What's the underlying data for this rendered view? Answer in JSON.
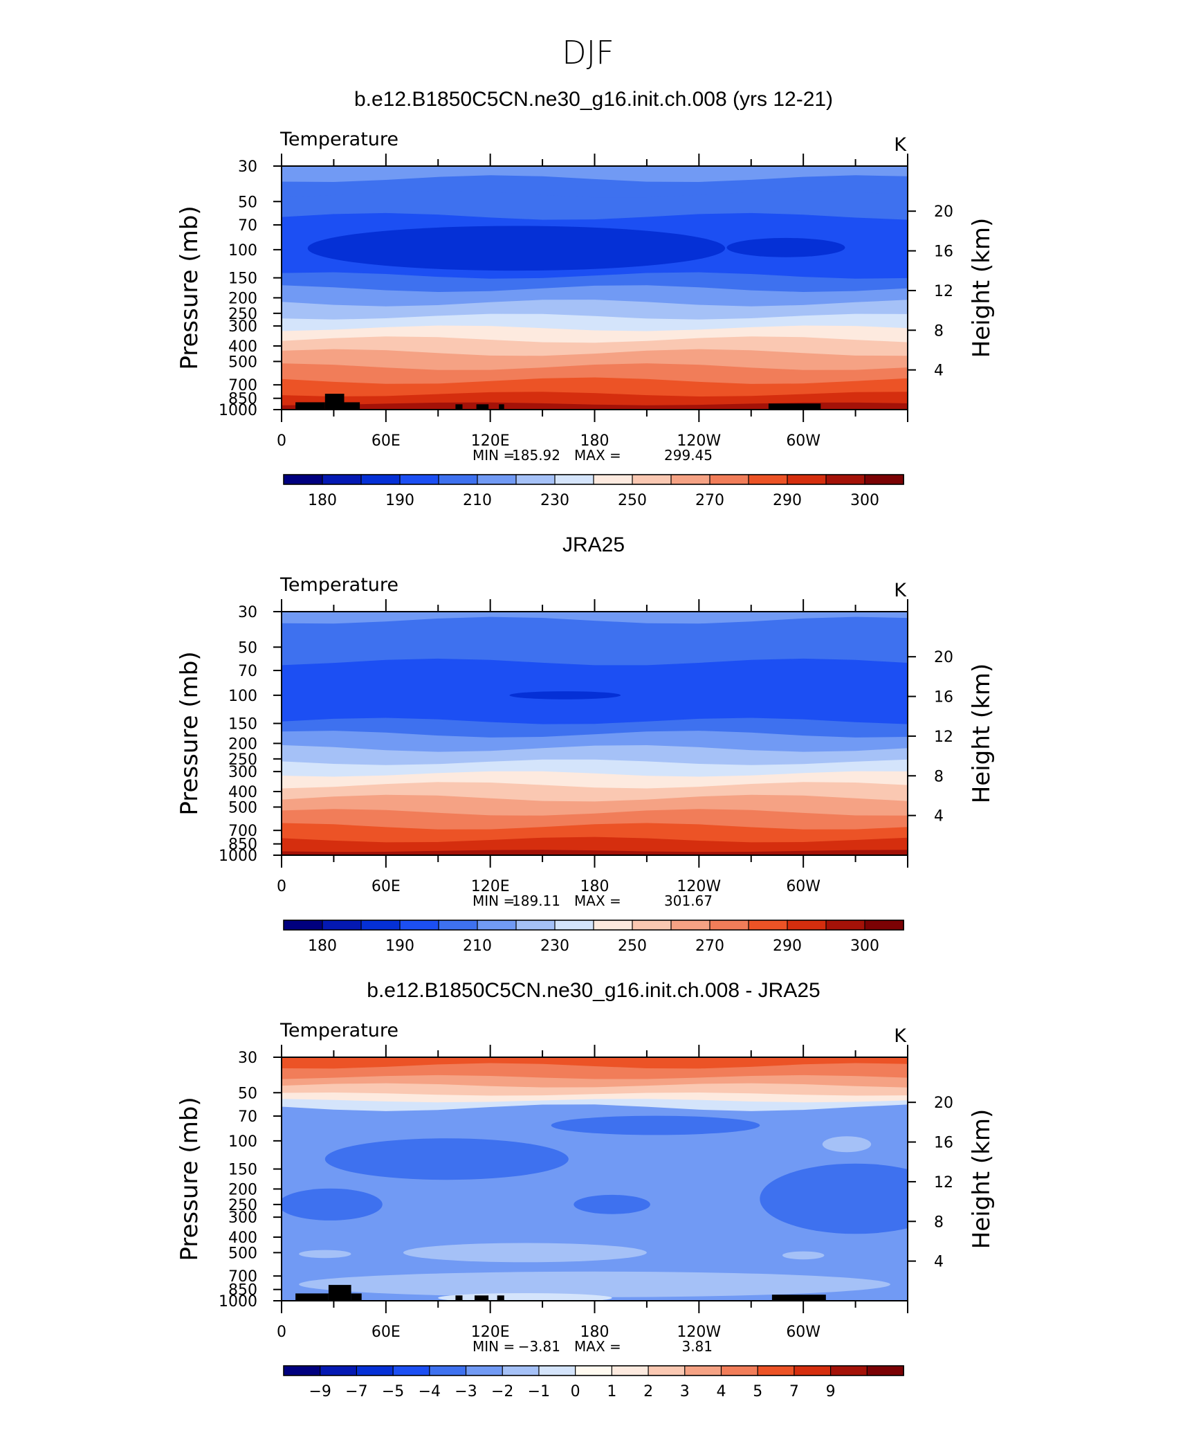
{
  "figure": {
    "title": "DJF"
  },
  "colors": {
    "temperature_scale": [
      "#00007f",
      "#0419b3",
      "#0530d6",
      "#1c4ff3",
      "#3e71ef",
      "#719af4",
      "#a5c1f7",
      "#d4e4fb",
      "#fdeadf",
      "#fac8b2",
      "#f5a284",
      "#f17d59",
      "#ec5326",
      "#d52e0e",
      "#a41208",
      "#7b0204"
    ],
    "diff_scale": [
      "#00007f",
      "#0419b3",
      "#0530d6",
      "#1c4ff3",
      "#3e71ef",
      "#719af4",
      "#a5c1f7",
      "#d4e4fb",
      "#fffaf0",
      "#fdeadf",
      "#fac8b2",
      "#f5a284",
      "#f17d59",
      "#ec5326",
      "#d52e0e",
      "#a41208",
      "#7b0204"
    ]
  },
  "chart_data": [
    {
      "type": "heatmap",
      "title": "b.e12.B1850C5CN.ne30_g16.init.ch.008 (yrs 12-21)",
      "left_label": "Temperature",
      "right_label": "K",
      "ylabel": "Pressure  (mb)",
      "y2label": "Height  (km)",
      "x_ticks": [
        "0",
        "60E",
        "120E",
        "180",
        "120W",
        "60W"
      ],
      "x_tick_values": [
        0,
        60,
        120,
        180,
        240,
        300
      ],
      "xlim": [
        0,
        360
      ],
      "y_ticks": [
        "30",
        "50",
        "70",
        "100",
        "150",
        "200",
        "250",
        "300",
        "400",
        "500",
        "700",
        "850",
        "1000"
      ],
      "y_tick_values": [
        30,
        50,
        70,
        100,
        150,
        200,
        250,
        300,
        400,
        500,
        700,
        850,
        1000
      ],
      "ylim": [
        1000,
        30
      ],
      "yscale": "log",
      "y2_ticks": [
        "20",
        "16",
        "12",
        "8",
        "4"
      ],
      "y2_tick_values": [
        20,
        16,
        12,
        8,
        4
      ],
      "stats": {
        "min_label": "MIN  =",
        "min": "185.92",
        "max_label": "MAX  =",
        "max": "299.45"
      },
      "colorbar_labels": [
        "180",
        "190",
        "210",
        "230",
        "250",
        "270",
        "290",
        "300"
      ],
      "bands": [
        {
          "p": [
            30,
            36
          ],
          "c": 5
        },
        {
          "p": [
            36,
            45
          ],
          "c": 4
        },
        {
          "p": [
            45,
            62
          ],
          "c": 4
        },
        {
          "p": [
            62,
            145
          ],
          "c": 3
        },
        {
          "p": [
            145,
            175
          ],
          "c": 4
        },
        {
          "p": [
            175,
            215
          ],
          "c": 5
        },
        {
          "p": [
            215,
            262
          ],
          "c": 6
        },
        {
          "p": [
            262,
            310
          ],
          "c": 7
        },
        {
          "p": [
            310,
            365
          ],
          "c": 8
        },
        {
          "p": [
            365,
            440
          ],
          "c": 9
        },
        {
          "p": [
            440,
            540
          ],
          "c": 10
        },
        {
          "p": [
            540,
            660
          ],
          "c": 11
        },
        {
          "p": [
            660,
            800
          ],
          "c": 12
        },
        {
          "p": [
            800,
            920
          ],
          "c": 13
        },
        {
          "p": [
            920,
            1000
          ],
          "c": 14
        }
      ],
      "blobs": [
        {
          "lon": 135,
          "p": 98,
          "dlon": 120,
          "dp": 0.14,
          "c": 2
        },
        {
          "lon": 290,
          "p": 97,
          "dlon": 34,
          "dp": 0.06,
          "c": 2
        }
      ],
      "terrain": [
        [
          8,
          25,
          0.03
        ],
        [
          25,
          36,
          0.065
        ],
        [
          36,
          45,
          0.03
        ],
        [
          100,
          104,
          0.022
        ],
        [
          112,
          119,
          0.022
        ],
        [
          125,
          128,
          0.022
        ],
        [
          280,
          310,
          0.025
        ]
      ]
    },
    {
      "type": "heatmap",
      "title": "JRA25",
      "left_label": "Temperature",
      "right_label": "K",
      "ylabel": "Pressure  (mb)",
      "y2label": "Height  (km)",
      "x_ticks": [
        "0",
        "60E",
        "120E",
        "180",
        "120W",
        "60W"
      ],
      "x_tick_values": [
        0,
        60,
        120,
        180,
        240,
        300
      ],
      "xlim": [
        0,
        360
      ],
      "y_ticks": [
        "30",
        "50",
        "70",
        "100",
        "150",
        "200",
        "250",
        "300",
        "400",
        "500",
        "700",
        "850",
        "1000"
      ],
      "y_tick_values": [
        30,
        50,
        70,
        100,
        150,
        200,
        250,
        300,
        400,
        500,
        700,
        850,
        1000
      ],
      "ylim": [
        1000,
        30
      ],
      "yscale": "log",
      "y2_ticks": [
        "20",
        "16",
        "12",
        "8",
        "4"
      ],
      "y2_tick_values": [
        20,
        16,
        12,
        8,
        4
      ],
      "stats": {
        "min_label": "MIN  =",
        "min": "189.11",
        "max_label": "MAX  =",
        "max": "301.67"
      },
      "colorbar_labels": [
        "180",
        "190",
        "210",
        "230",
        "250",
        "270",
        "290",
        "300"
      ],
      "bands": [
        {
          "p": [
            30,
            34
          ],
          "c": 5
        },
        {
          "p": [
            34,
            62
          ],
          "c": 4
        },
        {
          "p": [
            62,
            145
          ],
          "c": 3
        },
        {
          "p": [
            145,
            175
          ],
          "c": 4
        },
        {
          "p": [
            175,
            215
          ],
          "c": 5
        },
        {
          "p": [
            215,
            262
          ],
          "c": 6
        },
        {
          "p": [
            262,
            310
          ],
          "c": 7
        },
        {
          "p": [
            310,
            365
          ],
          "c": 8
        },
        {
          "p": [
            365,
            440
          ],
          "c": 9
        },
        {
          "p": [
            440,
            540
          ],
          "c": 10
        },
        {
          "p": [
            540,
            660
          ],
          "c": 11
        },
        {
          "p": [
            660,
            800
          ],
          "c": 12
        },
        {
          "p": [
            800,
            940
          ],
          "c": 13
        },
        {
          "p": [
            940,
            1000
          ],
          "c": 14
        }
      ],
      "blobs": [
        {
          "lon": 163,
          "p": 100,
          "dlon": 32,
          "dp": 0.025,
          "c": 2
        }
      ],
      "terrain": []
    },
    {
      "type": "heatmap",
      "title": "b.e12.B1850C5CN.ne30_g16.init.ch.008 - JRA25",
      "left_label": "Temperature",
      "right_label": "K",
      "ylabel": "Pressure  (mb)",
      "y2label": "Height  (km)",
      "x_ticks": [
        "0",
        "60E",
        "120E",
        "180",
        "120W",
        "60W"
      ],
      "x_tick_values": [
        0,
        60,
        120,
        180,
        240,
        300
      ],
      "xlim": [
        0,
        360
      ],
      "y_ticks": [
        "30",
        "50",
        "70",
        "100",
        "150",
        "200",
        "250",
        "300",
        "400",
        "500",
        "700",
        "850",
        "1000"
      ],
      "y_tick_values": [
        30,
        50,
        70,
        100,
        150,
        200,
        250,
        300,
        400,
        500,
        700,
        850,
        1000
      ],
      "ylim": [
        1000,
        30
      ],
      "yscale": "log",
      "y2_ticks": [
        "20",
        "16",
        "12",
        "8",
        "4"
      ],
      "y2_tick_values": [
        20,
        16,
        12,
        8,
        4
      ],
      "stats": {
        "min_label": "MIN  =",
        "min": "−3.81",
        "max_label": "MAX  =",
        "max": "3.81"
      },
      "colorbar_labels": [
        "−9",
        "−7",
        "−5",
        "−4",
        "−3",
        "−2",
        "−1",
        "0",
        "1",
        "2",
        "3",
        "4",
        "5",
        "7",
        "9"
      ],
      "bands": [
        {
          "p": [
            30,
            34
          ],
          "c": 13
        },
        {
          "p": [
            34,
            40
          ],
          "c": 12
        },
        {
          "p": [
            40,
            45
          ],
          "c": 11
        },
        {
          "p": [
            45,
            51
          ],
          "c": 10
        },
        {
          "p": [
            51,
            56
          ],
          "c": 9
        },
        {
          "p": [
            56,
            62
          ],
          "c": 7
        },
        {
          "p": [
            62,
            1000
          ],
          "c": 5
        }
      ],
      "blobs": [
        {
          "lon": 95,
          "p": 130,
          "dlon": 70,
          "dp": 0.13,
          "c": 4
        },
        {
          "lon": 215,
          "p": 80,
          "dlon": 60,
          "dp": 0.06,
          "c": 4
        },
        {
          "lon": 330,
          "p": 230,
          "dlon": 55,
          "dp": 0.22,
          "c": 4
        },
        {
          "lon": 28,
          "p": 250,
          "dlon": 30,
          "dp": 0.1,
          "c": 4
        },
        {
          "lon": 190,
          "p": 250,
          "dlon": 22,
          "dp": 0.06,
          "c": 4
        },
        {
          "lon": 325,
          "p": 105,
          "dlon": 14,
          "dp": 0.05,
          "c": 6
        },
        {
          "lon": 140,
          "p": 500,
          "dlon": 70,
          "dp": 0.06,
          "c": 6
        },
        {
          "lon": 180,
          "p": 790,
          "dlon": 170,
          "dp": 0.08,
          "c": 6
        },
        {
          "lon": 25,
          "p": 510,
          "dlon": 15,
          "dp": 0.025,
          "c": 6
        },
        {
          "lon": 300,
          "p": 520,
          "dlon": 12,
          "dp": 0.025,
          "c": 6
        },
        {
          "lon": 140,
          "p": 960,
          "dlon": 50,
          "dp": 0.03,
          "c": 7
        }
      ],
      "terrain": [
        [
          8,
          27,
          0.03
        ],
        [
          27,
          40,
          0.065
        ],
        [
          40,
          46,
          0.03
        ],
        [
          100,
          104,
          0.022
        ],
        [
          111,
          119,
          0.022
        ],
        [
          124,
          128,
          0.022
        ],
        [
          282,
          313,
          0.025
        ]
      ]
    }
  ]
}
